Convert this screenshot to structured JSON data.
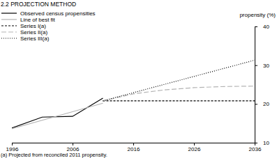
{
  "chart_data": {
    "type": "line",
    "title": "2.2 PROJECTION METHOD",
    "y_label": "propensity (%)",
    "annotations": [
      "(a) Projected from reconciled 2011 propensity."
    ],
    "x": [
      1996,
      2001,
      2006,
      2011,
      2016,
      2021,
      2026,
      2031,
      2036
    ],
    "series": [
      {
        "name": "Observed census propensities",
        "color": "#000000",
        "line_style": "solid",
        "values": [
          13.8,
          16.6,
          16.8,
          21.5,
          null,
          null,
          null,
          null,
          null
        ]
      },
      {
        "name": "Line of best fit",
        "color": "#b3b3b3",
        "line_style": "solid",
        "values": [
          13.6,
          15.8,
          18.0,
          20.2,
          null,
          null,
          null,
          null,
          null
        ]
      },
      {
        "name": "Series I(a)",
        "color": "#000000",
        "line_style": "dashed",
        "values": [
          null,
          null,
          null,
          20.8,
          20.8,
          20.8,
          20.8,
          20.8,
          20.8
        ]
      },
      {
        "name": "Series II(a)",
        "color": "#b3b3b3",
        "line_style": "longdash",
        "values": [
          null,
          null,
          null,
          20.8,
          22.6,
          23.6,
          24.2,
          24.5,
          24.6
        ]
      },
      {
        "name": "Series III(a)",
        "color": "#000000",
        "line_style": "dotted",
        "values": [
          null,
          null,
          null,
          20.8,
          22.9,
          25.0,
          27.1,
          29.2,
          31.3
        ]
      }
    ],
    "xlim": [
      1996,
      2036
    ],
    "xticks": [
      1996,
      2006,
      2016,
      2026,
      2036
    ],
    "ylim": [
      10,
      40
    ],
    "yticks": [
      10,
      20,
      30,
      40
    ],
    "grid": false,
    "legend": "upper left"
  }
}
